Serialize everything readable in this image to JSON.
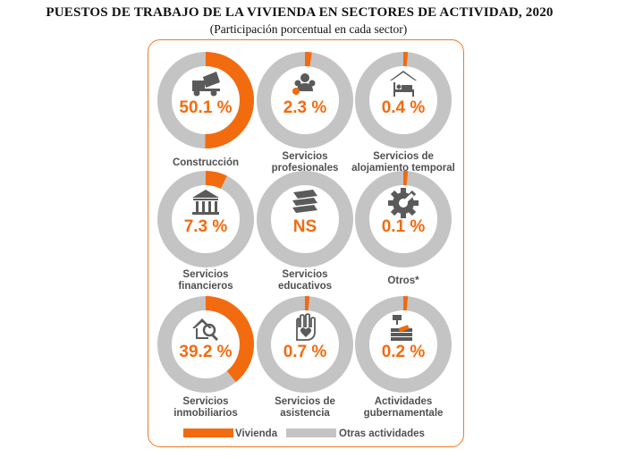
{
  "title": "PUESTOS DE TRABAJO DE LA VIVIENDA EN SECTORES DE ACTIVIDAD, 2020",
  "subtitle": "(Participación porcentual en cada sector)",
  "colors": {
    "vivienda": "#f26b0f",
    "otras": "#c4c4c4",
    "icon": "#5a5a5a",
    "frame": "#f07a22"
  },
  "chart_data": {
    "type": "pie",
    "style": "donut-small-multiples",
    "title": "PUESTOS DE TRABAJO DE LA VIVIENDA EN SECTORES DE ACTIVIDAD, 2020",
    "subtitle": "(Participación porcentual en cada sector)",
    "legend": [
      "Vivienda",
      "Otras actividades"
    ],
    "legend_position": "bottom",
    "unit": "%",
    "categories": [
      {
        "label_lines": [
          "Construcción"
        ],
        "value": 50.1,
        "value_label": "50.1 %",
        "icon": "cement-mixer-icon"
      },
      {
        "label_lines": [
          "Servicios",
          "profesionales"
        ],
        "value": 2.3,
        "value_label": "2.3 %",
        "icon": "professionals-icon"
      },
      {
        "label_lines": [
          "Servicios de",
          "alojamiento temporal"
        ],
        "value": 0.4,
        "value_label": "0.4 %",
        "icon": "hotel-bed-icon"
      },
      {
        "label_lines": [
          "Servicios",
          "financieros"
        ],
        "value": 7.3,
        "value_label": "7.3 %",
        "icon": "bank-icon"
      },
      {
        "label_lines": [
          "Servicios",
          "educativos"
        ],
        "value": 0,
        "value_label": "NS",
        "icon": "books-icon"
      },
      {
        "label_lines": [
          "Otros*"
        ],
        "value": 0.1,
        "value_label": "0.1 %",
        "icon": "gear-icon"
      },
      {
        "label_lines": [
          "Servicios",
          "inmobiliarios"
        ],
        "value": 39.2,
        "value_label": "39.2 %",
        "icon": "house-magnifier-icon"
      },
      {
        "label_lines": [
          "Servicios de",
          "asistencia"
        ],
        "value": 0.7,
        "value_label": "0.7 %",
        "icon": "heart-hand-icon"
      },
      {
        "label_lines": [
          "Actividades",
          "gubernamentale"
        ],
        "value": 0.2,
        "value_label": "0.2 %",
        "icon": "gavel-icon"
      }
    ]
  }
}
